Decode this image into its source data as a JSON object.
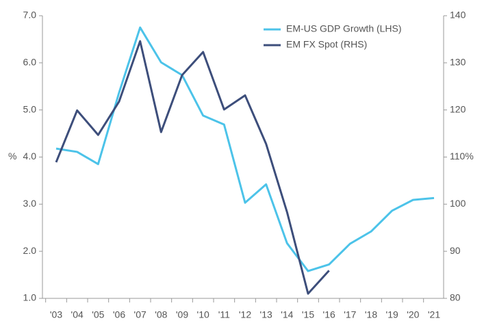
{
  "chart_data": {
    "type": "line",
    "ylabel": "%",
    "categories": [
      "'03",
      "'04",
      "'05",
      "'06",
      "'07",
      "'08",
      "'09",
      "'10",
      "'11",
      "'12",
      "'13",
      "'14",
      "'15",
      "'16",
      "'17",
      "'18",
      "'19",
      "'20",
      "'21"
    ],
    "series": [
      {
        "name": "EM-US GDP Growth (LHS)",
        "color": "#4cc3e9",
        "values": [
          4.18,
          4.11,
          3.85,
          5.37,
          6.75,
          6.01,
          5.74,
          4.88,
          4.69,
          3.03,
          3.42,
          2.17,
          1.58,
          1.72,
          2.16,
          2.42,
          2.86,
          3.09,
          3.13
        ]
      },
      {
        "name": "EM FX Spot (RHS)",
        "color": "#3d4e7b",
        "axis": "y2",
        "values": [
          108.9,
          119.9,
          114.7,
          121.8,
          134.6,
          115.3,
          127.4,
          132.3,
          120.1,
          123.1,
          112.8,
          98.3,
          81.0,
          85.9,
          null,
          null,
          null,
          null,
          null
        ]
      }
    ],
    "ylim": [
      1,
      7
    ],
    "yticks": [
      {
        "value": 1,
        "label": "1.0"
      },
      {
        "value": 2,
        "label": "2.0"
      },
      {
        "value": 3,
        "label": "3.0"
      },
      {
        "value": 4,
        "label": "4.0"
      },
      {
        "value": 5,
        "label": "5.0"
      },
      {
        "value": 6,
        "label": "6.0"
      },
      {
        "value": 7,
        "label": "7.0"
      }
    ],
    "y2lim": [
      80,
      140
    ],
    "y2ticks": [
      80,
      90,
      100,
      {
        "value": 110,
        "label": "110%"
      },
      120,
      130,
      140
    ],
    "legend": "upper right"
  }
}
